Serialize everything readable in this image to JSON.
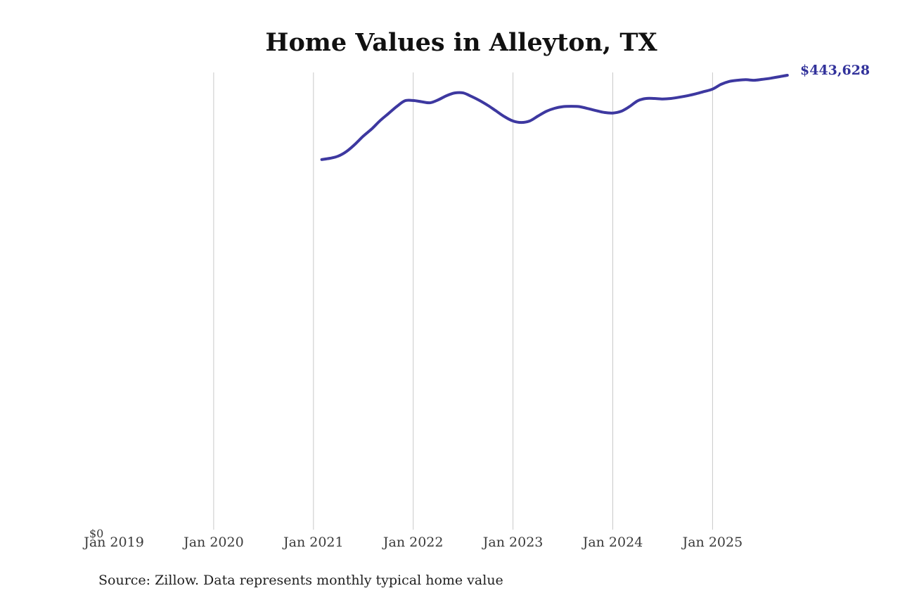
{
  "chart_data": {
    "type": "line",
    "title": "Home Values in Alleyton, TX",
    "source": "Source: Zillow. Data represents monthly typical home value",
    "series_name": "Typical home value",
    "y_zero_label": "$0",
    "end_value_label": "$443,628",
    "end_value": 443628,
    "x_tick_labels": [
      "Jan 2019",
      "Jan 2020",
      "Jan 2021",
      "Jan 2022",
      "Jan 2023",
      "Jan 2024",
      "Jan 2025"
    ],
    "grid": "vertical-yearly, no gridline at Jan 2019, no horizontal axis lines",
    "legend": "none",
    "ylim": [
      0,
      446400
    ],
    "colors": {
      "line": "#3d38a0",
      "end_label": "#32329b",
      "grid": "#c9c9c9",
      "axis_text": "#3a3a3a",
      "title": "#111111"
    },
    "x": [
      "2021-02",
      "2021-03",
      "2021-04",
      "2021-05",
      "2021-06",
      "2021-07",
      "2021-08",
      "2021-09",
      "2021-10",
      "2021-11",
      "2021-12",
      "2022-01",
      "2022-02",
      "2022-03",
      "2022-04",
      "2022-05",
      "2022-06",
      "2022-07",
      "2022-08",
      "2022-09",
      "2022-10",
      "2022-11",
      "2022-12",
      "2023-01",
      "2023-02",
      "2023-03",
      "2023-04",
      "2023-05",
      "2023-06",
      "2023-07",
      "2023-08",
      "2023-09",
      "2023-10",
      "2023-11",
      "2023-12",
      "2024-01",
      "2024-02",
      "2024-03",
      "2024-04",
      "2024-05",
      "2024-06",
      "2024-07",
      "2024-08",
      "2024-09",
      "2024-10",
      "2024-11",
      "2024-12",
      "2025-01",
      "2025-02",
      "2025-03",
      "2025-04",
      "2025-05",
      "2025-06",
      "2025-07",
      "2025-08",
      "2025-09",
      "2025-10"
    ],
    "values": [
      361400,
      362600,
      364800,
      369400,
      376300,
      384300,
      391200,
      399200,
      406100,
      413000,
      418700,
      419000,
      417800,
      416800,
      419600,
      423700,
      426400,
      426400,
      423000,
      418900,
      414100,
      408600,
      403100,
      399000,
      397600,
      399000,
      403800,
      408400,
      411400,
      413000,
      413400,
      413000,
      411200,
      409100,
      407300,
      406800,
      408400,
      413000,
      418700,
      421000,
      421000,
      420500,
      421000,
      422200,
      423700,
      425600,
      427800,
      430100,
      434700,
      437600,
      438800,
      439300,
      438800,
      439700,
      440800,
      442200,
      443628
    ]
  }
}
